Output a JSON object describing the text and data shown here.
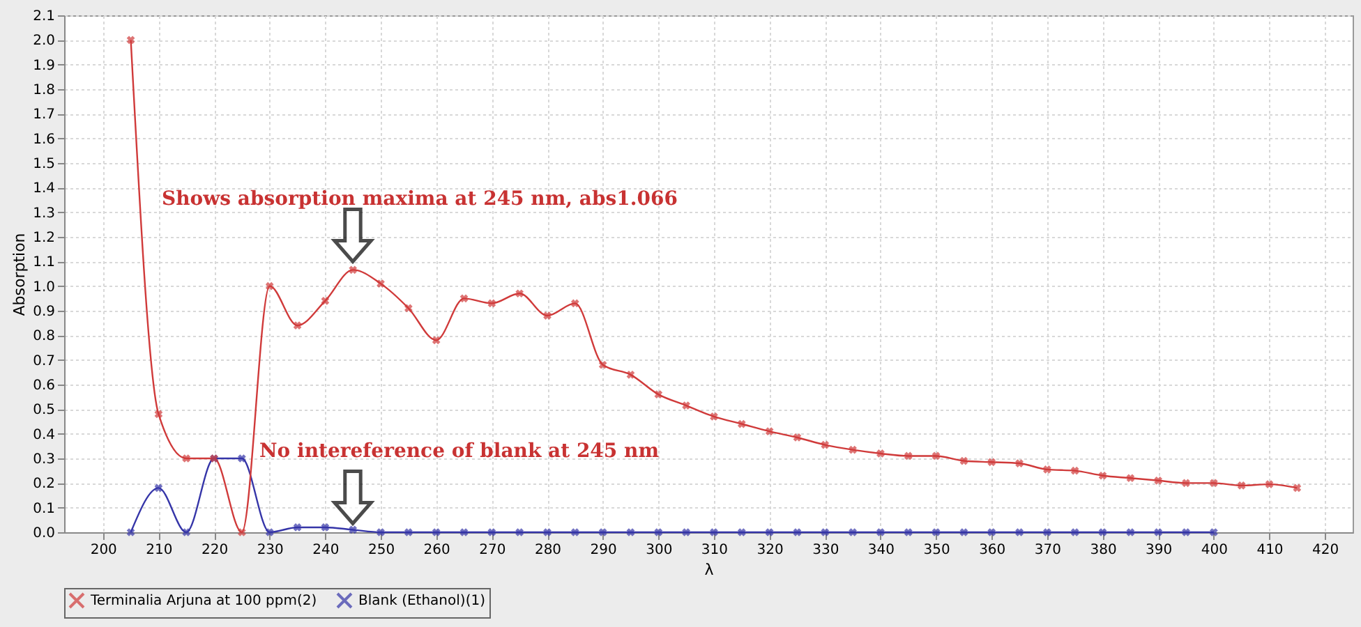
{
  "chart_data": {
    "type": "line",
    "xlabel": "λ",
    "ylabel": "Absorption",
    "xlim": [
      193,
      425
    ],
    "xticks": [
      200,
      210,
      220,
      230,
      240,
      250,
      260,
      270,
      280,
      290,
      300,
      310,
      320,
      330,
      340,
      350,
      360,
      370,
      380,
      390,
      400,
      410,
      420
    ],
    "ylim": [
      0,
      2.1
    ],
    "yticks": [
      {
        "value": 0,
        "label": "0.0"
      },
      0.1,
      0.2,
      0.3,
      0.4,
      0.5,
      0.6,
      0.7,
      0.8,
      0.9,
      {
        "value": 1,
        "label": "1.0"
      },
      1.1,
      1.2,
      1.3,
      1.4,
      1.5,
      1.6,
      1.7,
      1.8,
      1.9,
      {
        "value": 2,
        "label": "2.0"
      },
      2.1
    ],
    "grid": true,
    "legend": "bottom",
    "marker": "cross",
    "line_style": "solid",
    "series": [
      {
        "name": "Terminalia Arjuna at 100 ppm(2)",
        "color": "#d03a3a",
        "x": [
          205,
          210,
          215,
          220,
          225,
          230,
          235,
          240,
          245,
          250,
          255,
          260,
          265,
          270,
          275,
          280,
          285,
          290,
          295,
          300,
          305,
          310,
          315,
          320,
          325,
          330,
          335,
          340,
          345,
          350,
          355,
          360,
          365,
          370,
          375,
          380,
          385,
          390,
          395,
          400,
          405,
          410,
          415
        ],
        "values": [
          2.0,
          0.48,
          0.3,
          0.3,
          0.0,
          1.0,
          0.84,
          0.94,
          1.066,
          1.01,
          0.91,
          0.78,
          0.95,
          0.93,
          0.97,
          0.88,
          0.93,
          0.68,
          0.64,
          0.56,
          0.515,
          0.47,
          0.44,
          0.41,
          0.385,
          0.355,
          0.335,
          0.32,
          0.31,
          0.31,
          0.29,
          0.285,
          0.28,
          0.255,
          0.25,
          0.23,
          0.22,
          0.21,
          0.2,
          0.2,
          0.19,
          0.195,
          0.18
        ]
      },
      {
        "name": "Blank (Ethanol)(1)",
        "color": "#3535a8",
        "x": [
          205,
          210,
          215,
          220,
          225,
          230,
          235,
          240,
          245,
          250,
          255,
          260,
          265,
          270,
          275,
          280,
          285,
          290,
          295,
          300,
          305,
          310,
          315,
          320,
          325,
          330,
          335,
          340,
          345,
          350,
          355,
          360,
          365,
          370,
          375,
          380,
          385,
          390,
          395,
          400
        ],
        "values": [
          0,
          0.18,
          0,
          0.3,
          0.3,
          0,
          0.02,
          0.02,
          0.01,
          0,
          0,
          0,
          0,
          0,
          0,
          0,
          0,
          0,
          0,
          0,
          0,
          0,
          0,
          0,
          0,
          0,
          0,
          0,
          0,
          0,
          0,
          0,
          0,
          0,
          0,
          0,
          0,
          0,
          0,
          0
        ]
      }
    ],
    "annotations": [
      "Shows absorption maxima at 245 nm, abs1.066",
      "No intereference of blank at 245 nm"
    ]
  }
}
